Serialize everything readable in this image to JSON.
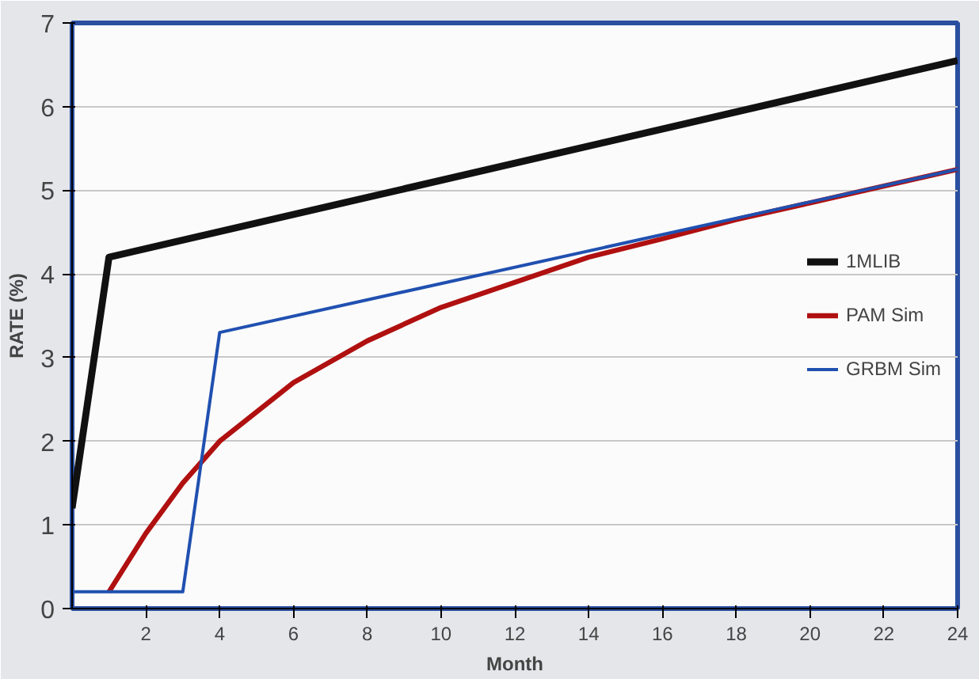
{
  "chart_data": {
    "type": "line",
    "xlabel": "Month",
    "ylabel": "RATE (%)",
    "xlim": [
      0,
      24
    ],
    "ylim": [
      0,
      7
    ],
    "xticks": [
      2,
      4,
      6,
      8,
      10,
      12,
      14,
      16,
      18,
      20,
      22,
      24
    ],
    "yticks": [
      0,
      1,
      2,
      3,
      4,
      5,
      6,
      7
    ],
    "grid": "y",
    "legend": "right",
    "marker": "none",
    "line_style": "solid",
    "series": [
      {
        "name": "1MLIB",
        "color": "#111111",
        "x": [
          0,
          1,
          24
        ],
        "values": [
          1.2,
          4.2,
          6.55
        ]
      },
      {
        "name": "PAM Sim",
        "color": "#b01010",
        "x": [
          1,
          2,
          3,
          4,
          6,
          8,
          10,
          12,
          14,
          16,
          18,
          20,
          22,
          24
        ],
        "values": [
          0.2,
          0.9,
          1.5,
          2.0,
          2.7,
          3.2,
          3.6,
          3.9,
          4.2,
          4.42,
          4.65,
          4.85,
          5.05,
          5.25
        ]
      },
      {
        "name": "GRBM Sim",
        "color": "#2050b0",
        "x": [
          0,
          3,
          4,
          24
        ],
        "values": [
          0.2,
          0.2,
          3.3,
          5.25
        ]
      }
    ]
  }
}
